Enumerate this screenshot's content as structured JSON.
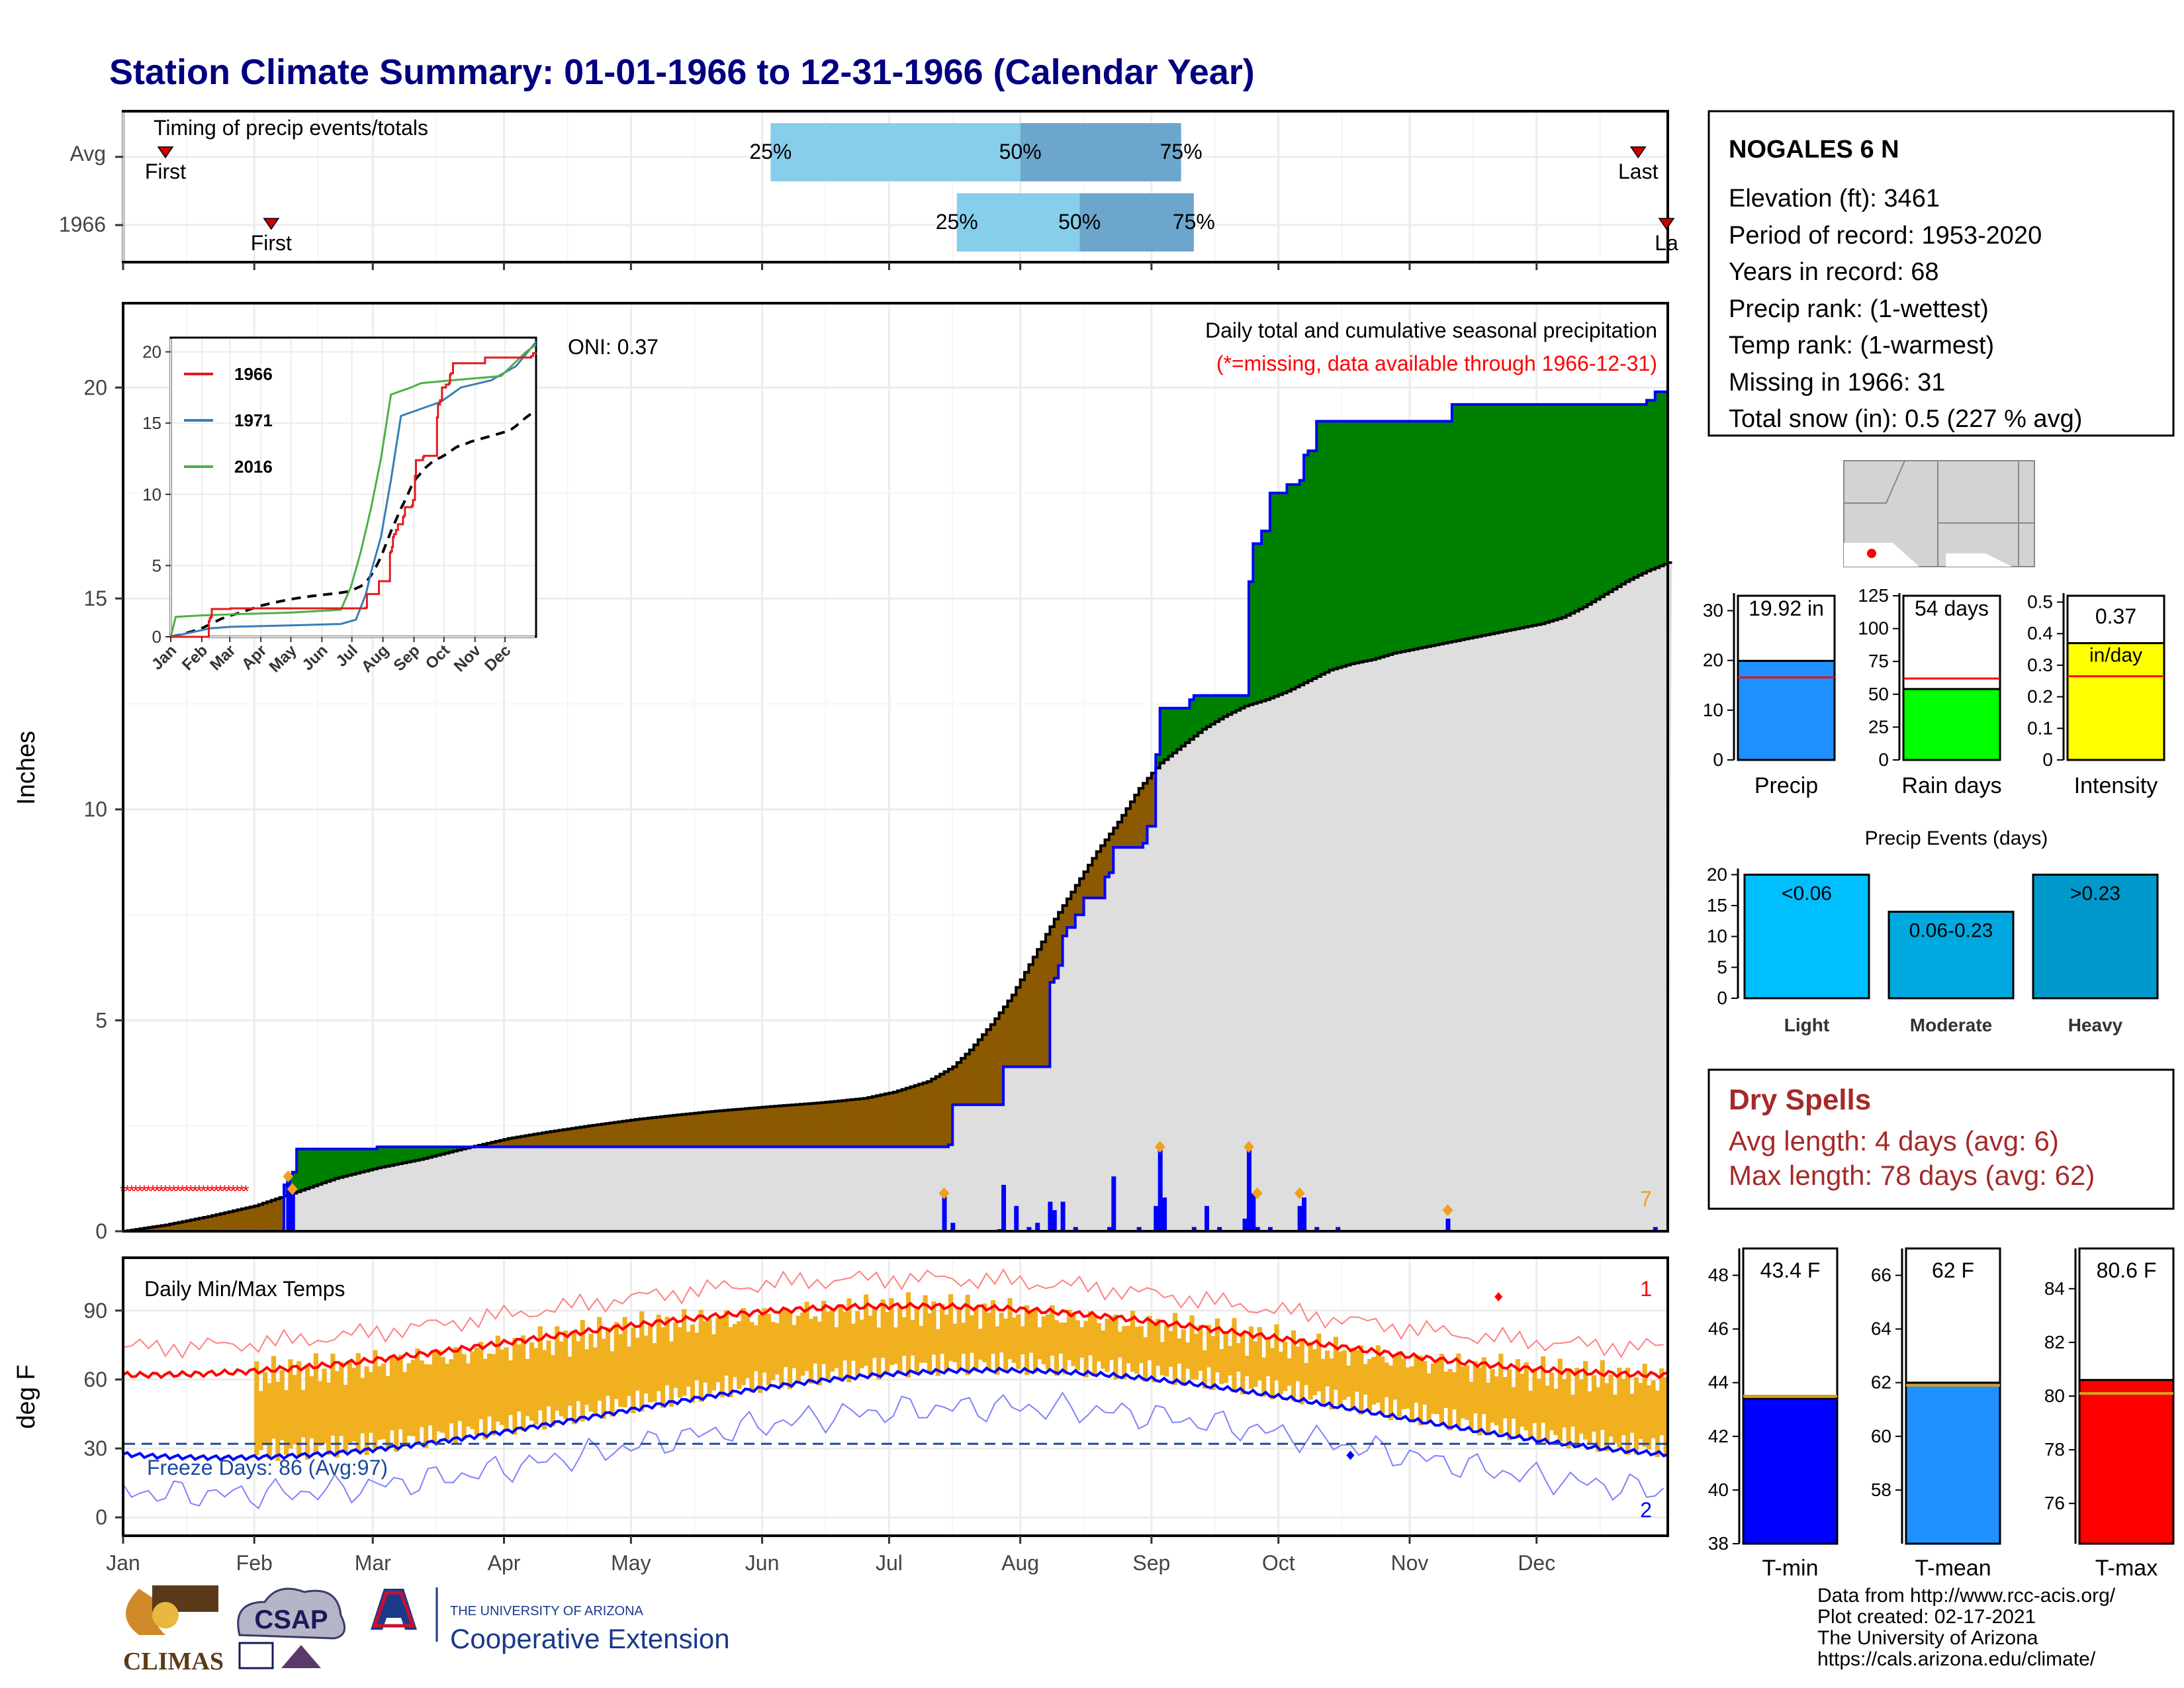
{
  "title": "Station Climate Summary: 01-01-1966 to 12-31-1966 (Calendar Year)",
  "timing": {
    "label": "Timing of precip events/totals",
    "rows": [
      {
        "name": "Avg",
        "first_label": "First",
        "last_label": "Last",
        "first_doy": 10,
        "last_doy": 358,
        "q25_doy": 153,
        "q50_doy": 212,
        "q75_doy": 250,
        "q25_label": "25%",
        "q50_label": "50%",
        "q75_label": "75%"
      },
      {
        "name": "1966",
        "first_label": "First",
        "last_label": "La",
        "first_doy": 35,
        "last_doy": 365,
        "q25_doy": 197,
        "q50_doy": 226,
        "q75_doy": 253,
        "q25_label": "25%",
        "q50_label": "50%",
        "q75_label": "75%"
      }
    ]
  },
  "precip": {
    "ylabel": "Inches",
    "yticks": [
      0,
      5,
      10,
      15,
      20
    ],
    "ylim": [
      0,
      22
    ],
    "caption": "Daily total and cumulative seasonal precipitation",
    "missing_note": "(*=missing, data available through 1966-12-31)",
    "oni_label": "ONI: 0.37",
    "corner_count": "7",
    "cumulative_1966": [
      [
        0,
        0
      ],
      [
        39,
        0
      ],
      [
        40,
        1.1
      ],
      [
        38,
        1.1
      ],
      [
        39,
        1.3
      ],
      [
        40,
        1.4
      ],
      [
        41,
        1.95
      ],
      [
        60,
        2.0
      ],
      [
        100,
        2.0
      ],
      [
        140,
        2.0
      ],
      [
        195,
        2.05
      ],
      [
        196,
        3.0
      ],
      [
        207,
        3.0
      ],
      [
        208,
        3.9
      ],
      [
        218,
        3.9
      ],
      [
        219,
        5.9
      ],
      [
        220,
        6.0
      ],
      [
        221,
        6.3
      ],
      [
        222,
        7.0
      ],
      [
        223,
        7.2
      ],
      [
        225,
        7.5
      ],
      [
        227,
        7.9
      ],
      [
        232,
        8.4
      ],
      [
        233,
        8.5
      ],
      [
        234,
        9.1
      ],
      [
        240,
        9.1
      ],
      [
        241,
        9.2
      ],
      [
        242,
        9.6
      ],
      [
        244,
        11.3
      ],
      [
        245,
        12.4
      ],
      [
        252,
        12.6
      ],
      [
        253,
        12.7
      ],
      [
        265,
        12.7
      ],
      [
        266,
        15.4
      ],
      [
        267,
        16.3
      ],
      [
        269,
        16.6
      ],
      [
        271,
        17.5
      ],
      [
        275,
        17.7
      ],
      [
        278,
        17.8
      ],
      [
        279,
        18.4
      ],
      [
        280,
        18.5
      ],
      [
        282,
        19.2
      ],
      [
        294,
        19.2
      ],
      [
        313,
        19.2
      ],
      [
        314,
        19.6
      ],
      [
        338,
        19.6
      ],
      [
        360,
        19.7
      ],
      [
        362,
        19.9
      ],
      [
        365,
        19.92
      ]
    ],
    "cumulative_avg": [
      [
        0,
        0
      ],
      [
        10,
        0.15
      ],
      [
        20,
        0.35
      ],
      [
        31,
        0.6
      ],
      [
        40,
        0.9
      ],
      [
        50,
        1.25
      ],
      [
        60,
        1.5
      ],
      [
        70,
        1.7
      ],
      [
        80,
        1.95
      ],
      [
        91,
        2.2
      ],
      [
        100,
        2.35
      ],
      [
        110,
        2.5
      ],
      [
        121,
        2.65
      ],
      [
        130,
        2.75
      ],
      [
        140,
        2.85
      ],
      [
        152,
        2.95
      ],
      [
        165,
        3.05
      ],
      [
        175,
        3.15
      ],
      [
        182,
        3.3
      ],
      [
        190,
        3.55
      ],
      [
        196,
        3.9
      ],
      [
        200,
        4.3
      ],
      [
        205,
        4.9
      ],
      [
        210,
        5.6
      ],
      [
        215,
        6.5
      ],
      [
        220,
        7.4
      ],
      [
        225,
        8.2
      ],
      [
        230,
        9.0
      ],
      [
        235,
        9.7
      ],
      [
        240,
        10.5
      ],
      [
        245,
        11.1
      ],
      [
        250,
        11.5
      ],
      [
        255,
        11.9
      ],
      [
        260,
        12.2
      ],
      [
        265,
        12.45
      ],
      [
        270,
        12.6
      ],
      [
        275,
        12.8
      ],
      [
        280,
        13.05
      ],
      [
        285,
        13.3
      ],
      [
        290,
        13.45
      ],
      [
        295,
        13.55
      ],
      [
        300,
        13.7
      ],
      [
        305,
        13.8
      ],
      [
        310,
        13.9
      ],
      [
        315,
        14.0
      ],
      [
        320,
        14.1
      ],
      [
        325,
        14.2
      ],
      [
        330,
        14.3
      ],
      [
        335,
        14.4
      ],
      [
        340,
        14.55
      ],
      [
        345,
        14.8
      ],
      [
        350,
        15.1
      ],
      [
        355,
        15.4
      ],
      [
        360,
        15.65
      ],
      [
        365,
        15.85
      ]
    ],
    "daily_bars": [
      [
        39,
        1.3
      ],
      [
        40,
        1.0
      ],
      [
        194,
        0.9
      ],
      [
        196,
        0.2
      ],
      [
        207,
        0.05
      ],
      [
        208,
        1.1
      ],
      [
        211,
        0.6
      ],
      [
        214,
        0.1
      ],
      [
        216,
        0.2
      ],
      [
        219,
        0.7
      ],
      [
        220,
        0.5
      ],
      [
        222,
        0.7
      ],
      [
        225,
        0.1
      ],
      [
        233,
        0.1
      ],
      [
        234,
        1.3
      ],
      [
        240,
        0.1
      ],
      [
        244,
        0.6
      ],
      [
        245,
        2.0
      ],
      [
        246,
        0.8
      ],
      [
        253,
        0.1
      ],
      [
        256,
        0.6
      ],
      [
        259,
        0.1
      ],
      [
        265,
        0.3
      ],
      [
        266,
        2.0
      ],
      [
        267,
        0.9
      ],
      [
        268,
        0.1
      ],
      [
        271,
        0.1
      ],
      [
        278,
        0.6
      ],
      [
        279,
        0.8
      ],
      [
        282,
        0.1
      ],
      [
        287,
        0.1
      ],
      [
        313,
        0.3
      ],
      [
        362,
        0.1
      ]
    ],
    "daily_diamonds": [
      [
        39,
        1.3
      ],
      [
        40,
        1.0
      ],
      [
        194,
        0.9
      ],
      [
        245,
        2.0
      ],
      [
        266,
        2.0
      ],
      [
        268,
        0.9
      ],
      [
        278,
        0.9
      ],
      [
        313,
        0.5
      ]
    ],
    "missing_days_end": 30
  },
  "inset": {
    "series": [
      {
        "name": "1966",
        "color": "#e41a1c"
      },
      {
        "name": "1971",
        "color": "#377eb8"
      },
      {
        "name": "2016",
        "color": "#4daf4a"
      }
    ],
    "yticks": [
      0,
      5,
      10,
      15,
      20
    ],
    "months": [
      "Jan",
      "Feb",
      "Mar",
      "Apr",
      "May",
      "Jun",
      "Jul",
      "Aug",
      "Sep",
      "Oct",
      "Nov",
      "Dec"
    ],
    "y1971": [
      [
        0,
        0
      ],
      [
        40,
        0.6
      ],
      [
        60,
        0.7
      ],
      [
        120,
        0.8
      ],
      [
        170,
        0.9
      ],
      [
        185,
        1.2
      ],
      [
        195,
        3.0
      ],
      [
        200,
        4.5
      ],
      [
        210,
        7.0
      ],
      [
        220,
        11.0
      ],
      [
        230,
        15.5
      ],
      [
        250,
        16.0
      ],
      [
        270,
        16.5
      ],
      [
        290,
        17.5
      ],
      [
        320,
        18.0
      ],
      [
        345,
        19.0
      ],
      [
        365,
        20.7
      ]
    ],
    "y2016": [
      [
        0,
        0
      ],
      [
        5,
        1.4
      ],
      [
        30,
        1.5
      ],
      [
        70,
        1.6
      ],
      [
        120,
        1.7
      ],
      [
        170,
        1.9
      ],
      [
        180,
        3.5
      ],
      [
        190,
        6.0
      ],
      [
        200,
        9.0
      ],
      [
        210,
        12.5
      ],
      [
        220,
        17.0
      ],
      [
        240,
        17.5
      ],
      [
        250,
        17.8
      ],
      [
        280,
        18.0
      ],
      [
        330,
        18.3
      ],
      [
        355,
        20.0
      ],
      [
        365,
        20.5
      ]
    ]
  },
  "station": {
    "name": "NOGALES 6 N",
    "lines": [
      "Elevation (ft): 3461",
      "Period of record: 1953-2020",
      "Years in record: 68",
      "Precip rank:  (1-wettest)",
      "Temp rank:  (1-warmest)",
      "Missing in 1966: 31",
      "Total snow (in): 0.5 (227 % avg)"
    ]
  },
  "precip_summary": [
    {
      "label": "Precip",
      "value_label": "19.92 in",
      "value": 19.92,
      "avg": 16.6,
      "ymax": 33,
      "yticks": [
        0,
        10,
        20,
        30
      ],
      "color": "#1e90ff"
    },
    {
      "label": "Rain days",
      "value_label": "54 days",
      "value": 54,
      "avg": 62,
      "ymax": 125,
      "yticks": [
        0,
        25,
        50,
        75,
        100,
        125
      ],
      "color": "#00ff00"
    },
    {
      "label": "Intensity",
      "value_label": "0.37",
      "unit_label": "in/day",
      "value": 0.37,
      "avg": 0.265,
      "ymax": 0.52,
      "yticks": [
        0.0,
        0.1,
        0.2,
        0.3,
        0.4,
        0.5
      ],
      "color": "#ffff00"
    }
  ],
  "events": {
    "title": "Precip Events (days)",
    "yticks": [
      0,
      5,
      10,
      15,
      20
    ],
    "ymax": 21,
    "bars": [
      {
        "label": "Light",
        "range": "<0.06",
        "value": 20,
        "color": "#00bfff"
      },
      {
        "label": "Moderate",
        "range": "0.06-0.23",
        "value": 14,
        "color": "#00a8e0"
      },
      {
        "label": "Heavy",
        "range": ">0.23",
        "value": 20,
        "color": "#0099cc"
      }
    ]
  },
  "dry_spells": {
    "title": "Dry Spells",
    "avg": "Avg length: 4 days (avg: 6)",
    "max": "Max length: 78 days (avg: 62)"
  },
  "temps": {
    "label": "Daily Min/Max Temps",
    "ylabel": "deg F",
    "yticks": [
      0,
      30,
      60,
      90
    ],
    "ylim": [
      -8,
      113
    ],
    "freeze_label": "Freeze Days: 86 (Avg:97)",
    "freeze_line": 32,
    "count_top": "1",
    "count_bottom": "2",
    "months": [
      "Jan",
      "Feb",
      "Mar",
      "Apr",
      "May",
      "Jun",
      "Jul",
      "Aug",
      "Sep",
      "Oct",
      "Nov",
      "Dec"
    ]
  },
  "temp_summary": [
    {
      "label": "T-min",
      "value_label": "43.4 F",
      "value": 43.4,
      "avg": 43.5,
      "ymin": 38,
      "ymax": 49,
      "yticks": [
        38,
        40,
        42,
        44,
        46,
        48
      ],
      "color": "#0000ff"
    },
    {
      "label": "T-mean",
      "value_label": "62 F",
      "value": 62,
      "avg": 61.9,
      "ymin": 56,
      "ymax": 67,
      "yticks": [
        58,
        60,
        62,
        64,
        66
      ],
      "color": "#1e90ff"
    },
    {
      "label": "T-max",
      "value_label": "80.6 F",
      "value": 80.6,
      "avg": 80.1,
      "ymin": 74.5,
      "ymax": 85.5,
      "yticks": [
        76,
        78,
        80,
        82,
        84
      ],
      "color": "#ff0000"
    }
  ],
  "footer": {
    "lines": [
      "Data from http://www.rcc-acis.org/",
      "Plot created: 02-17-2021",
      "The University of Arizona",
      "https://cals.arizona.edu/climate/"
    ],
    "climas": "CLIMAS",
    "csap": "CSAP",
    "ua_small": "THE UNIVERSITY OF ARIZONA",
    "ua_big": "Cooperative Extension"
  },
  "colors": {
    "title": "#000080",
    "green": "#008000",
    "brown": "#8b5a00",
    "grey": "#dedede",
    "blue": "#0000ff",
    "orange": "#f0b020",
    "dryspell": "#a52a2a"
  }
}
